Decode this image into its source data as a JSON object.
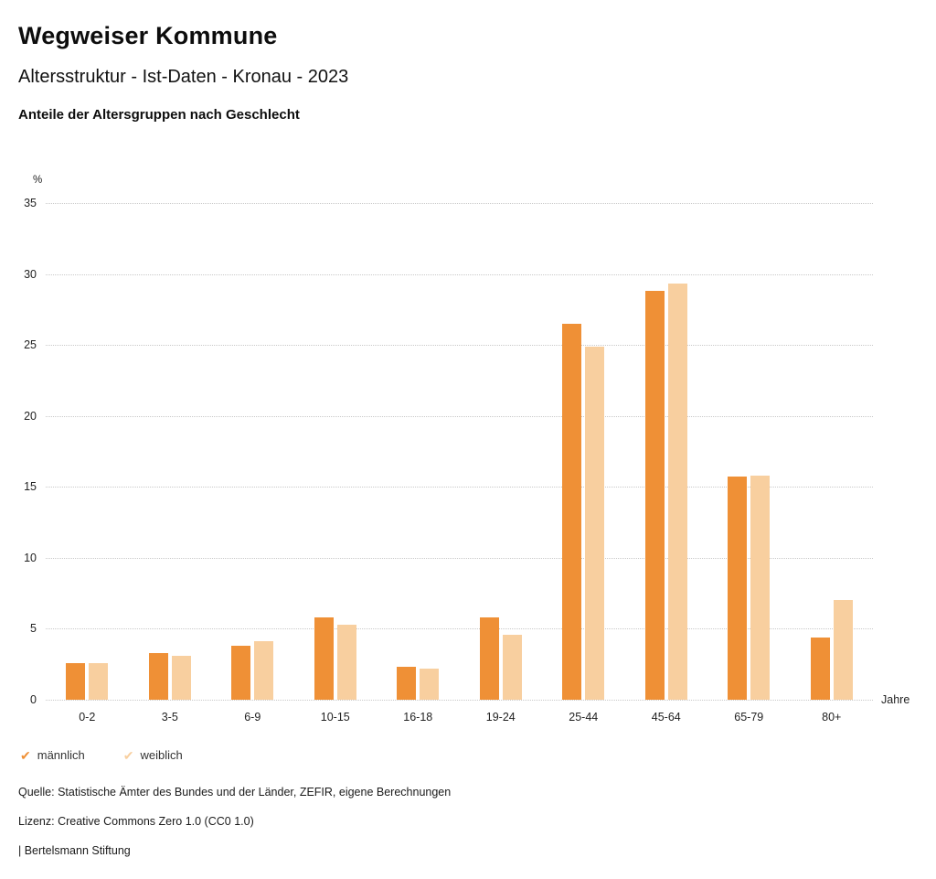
{
  "header": {
    "title": "Wegweiser Kommune",
    "subtitle": "Altersstruktur - Ist-Daten - Kronau - 2023",
    "chart_heading": "Anteile der Altersgruppen nach Geschlecht"
  },
  "chart_data": {
    "type": "bar",
    "title": "Anteile der Altersgruppen nach Geschlecht",
    "unit_y": "%",
    "unit_x": "Jahre",
    "categories": [
      "0-2",
      "3-5",
      "6-9",
      "10-15",
      "16-18",
      "19-24",
      "25-44",
      "45-64",
      "65-79",
      "80+"
    ],
    "series": [
      {
        "name": "männlich",
        "color": "#EF9036",
        "values": [
          2.6,
          3.3,
          3.8,
          5.8,
          2.3,
          5.8,
          26.5,
          28.8,
          15.7,
          4.4
        ]
      },
      {
        "name": "weiblich",
        "color": "#F8CF9F",
        "values": [
          2.6,
          3.1,
          4.1,
          5.3,
          2.2,
          4.6,
          24.9,
          29.3,
          15.8,
          7.0
        ]
      }
    ],
    "ylim": [
      0,
      35
    ],
    "yticks": [
      0,
      5,
      10,
      15,
      20,
      25,
      30,
      35
    ],
    "grid": "dotted horizontal",
    "legend_position": "bottom-left",
    "legend_marker": "✔"
  },
  "footer": {
    "source": "Quelle: Statistische Ämter des Bundes und der Länder, ZEFIR, eigene Berechnungen",
    "license": "Lizenz: Creative Commons Zero 1.0 (CC0 1.0)",
    "attribution": "| Bertelsmann Stiftung"
  }
}
